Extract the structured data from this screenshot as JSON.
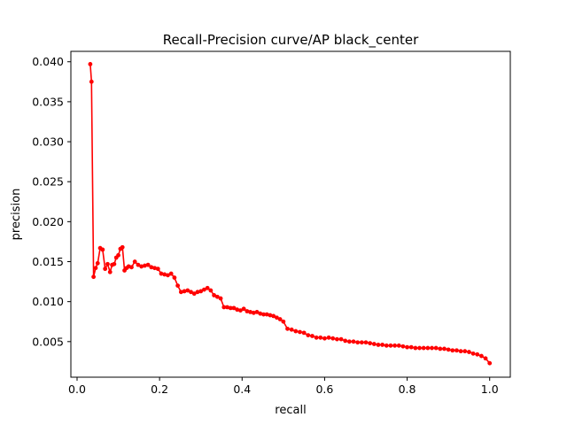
{
  "chart_data": {
    "type": "line",
    "title": "Recall-Precision curve/AP black_center",
    "xlabel": "recall",
    "ylabel": "precision",
    "xlim": [
      -0.015,
      1.05
    ],
    "ylim": [
      0.00055,
      0.0413
    ],
    "xticks": [
      0.0,
      0.2,
      0.4,
      0.6,
      0.8,
      1.0
    ],
    "xtick_labels": [
      "0.0",
      "0.2",
      "0.4",
      "0.6",
      "0.8",
      "1.0"
    ],
    "yticks": [
      0.005,
      0.01,
      0.015,
      0.02,
      0.025,
      0.03,
      0.035,
      0.04
    ],
    "ytick_labels": [
      "0.005",
      "0.010",
      "0.015",
      "0.020",
      "0.025",
      "0.030",
      "0.035",
      "0.040"
    ],
    "grid": false,
    "legend": "none",
    "series": [
      {
        "color": "#ff0000",
        "marker": "circle",
        "x": [
          0.032,
          0.035,
          0.04,
          0.045,
          0.05,
          0.056,
          0.062,
          0.068,
          0.074,
          0.08,
          0.085,
          0.09,
          0.095,
          0.1,
          0.105,
          0.11,
          0.115,
          0.12,
          0.125,
          0.132,
          0.14,
          0.148,
          0.156,
          0.164,
          0.172,
          0.18,
          0.188,
          0.196,
          0.204,
          0.212,
          0.22,
          0.228,
          0.236,
          0.244,
          0.252,
          0.26,
          0.268,
          0.276,
          0.284,
          0.292,
          0.3,
          0.308,
          0.316,
          0.324,
          0.332,
          0.34,
          0.348,
          0.356,
          0.364,
          0.372,
          0.38,
          0.388,
          0.396,
          0.404,
          0.412,
          0.42,
          0.428,
          0.436,
          0.444,
          0.452,
          0.46,
          0.468,
          0.476,
          0.484,
          0.492,
          0.5,
          0.51,
          0.52,
          0.53,
          0.54,
          0.55,
          0.56,
          0.57,
          0.58,
          0.59,
          0.6,
          0.61,
          0.62,
          0.63,
          0.64,
          0.65,
          0.66,
          0.67,
          0.68,
          0.69,
          0.7,
          0.71,
          0.72,
          0.73,
          0.74,
          0.75,
          0.76,
          0.77,
          0.78,
          0.79,
          0.8,
          0.81,
          0.82,
          0.83,
          0.84,
          0.85,
          0.86,
          0.87,
          0.88,
          0.89,
          0.9,
          0.91,
          0.92,
          0.93,
          0.94,
          0.95,
          0.96,
          0.97,
          0.98,
          0.99,
          1.0
        ],
        "y": [
          0.0397,
          0.0375,
          0.0131,
          0.0142,
          0.0148,
          0.0167,
          0.0165,
          0.0141,
          0.0147,
          0.0137,
          0.0146,
          0.0147,
          0.0155,
          0.0158,
          0.0166,
          0.0168,
          0.0139,
          0.0142,
          0.0144,
          0.0143,
          0.015,
          0.0146,
          0.0144,
          0.0145,
          0.0146,
          0.0143,
          0.0142,
          0.0141,
          0.0135,
          0.0134,
          0.0133,
          0.0135,
          0.013,
          0.012,
          0.0112,
          0.0113,
          0.0114,
          0.0112,
          0.011,
          0.0112,
          0.0113,
          0.0115,
          0.0117,
          0.0114,
          0.0108,
          0.0106,
          0.0104,
          0.0093,
          0.0093,
          0.0092,
          0.0092,
          0.009,
          0.0089,
          0.0091,
          0.0088,
          0.0087,
          0.0086,
          0.0087,
          0.0085,
          0.0084,
          0.0084,
          0.0083,
          0.0082,
          0.008,
          0.0078,
          0.0075,
          0.0066,
          0.0065,
          0.0063,
          0.0062,
          0.0061,
          0.0058,
          0.0057,
          0.0055,
          0.0055,
          0.0054,
          0.0055,
          0.0054,
          0.0053,
          0.0053,
          0.0051,
          0.005,
          0.005,
          0.0049,
          0.0049,
          0.0049,
          0.0048,
          0.0047,
          0.0046,
          0.0046,
          0.0045,
          0.0045,
          0.0045,
          0.0045,
          0.0044,
          0.0043,
          0.0043,
          0.0042,
          0.0042,
          0.0042,
          0.0042,
          0.0042,
          0.0042,
          0.0041,
          0.0041,
          0.004,
          0.0039,
          0.0039,
          0.0038,
          0.0038,
          0.0037,
          0.0035,
          0.0034,
          0.0032,
          0.0029,
          0.0023
        ]
      }
    ]
  }
}
